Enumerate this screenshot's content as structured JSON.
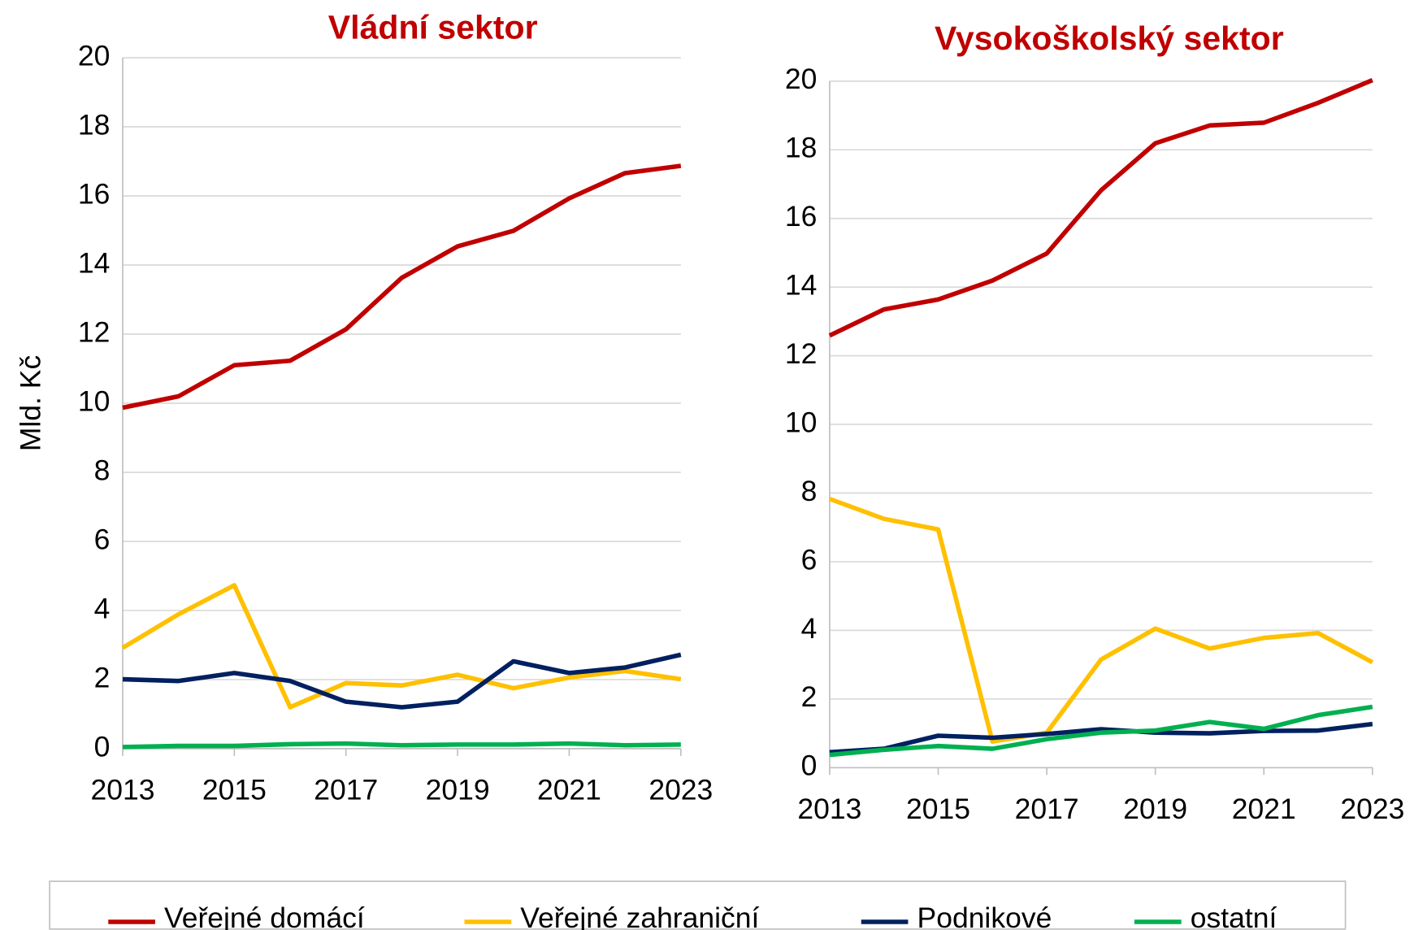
{
  "chart_data": [
    {
      "type": "line",
      "title": "Vládní sektor",
      "y_label": "Mld. Kč",
      "x": [
        2013,
        2014,
        2015,
        2016,
        2017,
        2018,
        2019,
        2020,
        2021,
        2022,
        2023
      ],
      "xlim": [
        2013,
        2023
      ],
      "xticks": [
        2013,
        2015,
        2017,
        2019,
        2021,
        2023
      ],
      "ylim": [
        0,
        20
      ],
      "yticks": [
        0,
        2,
        4,
        6,
        8,
        10,
        12,
        14,
        16,
        18,
        20
      ],
      "grid": true,
      "series": [
        {
          "name": "Veřejné domácí",
          "color": "#c00000",
          "values": [
            9.87,
            10.2,
            11.1,
            11.23,
            12.14,
            13.63,
            14.54,
            14.99,
            15.93,
            16.66,
            16.87
          ]
        },
        {
          "name": "Veřejné zahraniční",
          "color": "#ffc000",
          "values": [
            2.92,
            3.89,
            4.73,
            1.2,
            1.9,
            1.83,
            2.14,
            1.75,
            2.06,
            2.25,
            2.01
          ]
        },
        {
          "name": "Podnikové",
          "color": "#002060",
          "values": [
            2.01,
            1.96,
            2.19,
            1.96,
            1.36,
            1.2,
            1.36,
            2.53,
            2.19,
            2.35,
            2.72
          ]
        },
        {
          "name": "ostatní",
          "color": "#00b050",
          "values": [
            0.05,
            0.08,
            0.08,
            0.13,
            0.15,
            0.1,
            0.12,
            0.12,
            0.15,
            0.1,
            0.12
          ]
        }
      ]
    },
    {
      "type": "line",
      "title": "Vysokoškolský sektor",
      "x": [
        2013,
        2014,
        2015,
        2016,
        2017,
        2018,
        2019,
        2020,
        2021,
        2022,
        2023
      ],
      "xlim": [
        2013,
        2023
      ],
      "xticks": [
        2013,
        2015,
        2017,
        2019,
        2021,
        2023
      ],
      "ylim": [
        0,
        20
      ],
      "yticks": [
        0,
        2,
        4,
        6,
        8,
        10,
        12,
        14,
        16,
        18,
        20
      ],
      "grid": true,
      "series": [
        {
          "color": "#c00000",
          "values": [
            12.59,
            13.35,
            13.64,
            14.19,
            14.98,
            16.82,
            18.19,
            18.71,
            18.79,
            19.37,
            20.03
          ]
        },
        {
          "color": "#ffc000",
          "values": [
            7.83,
            7.25,
            6.94,
            0.76,
            1.02,
            3.15,
            4.05,
            3.47,
            3.78,
            3.92,
            3.07
          ]
        },
        {
          "color": "#002060",
          "values": [
            0.45,
            0.55,
            0.93,
            0.87,
            0.98,
            1.12,
            1.02,
            1.0,
            1.07,
            1.08,
            1.27
          ]
        },
        {
          "color": "#00b050",
          "values": [
            0.37,
            0.52,
            0.63,
            0.55,
            0.83,
            1.02,
            1.08,
            1.33,
            1.13,
            1.53,
            1.77
          ]
        }
      ]
    }
  ]
}
